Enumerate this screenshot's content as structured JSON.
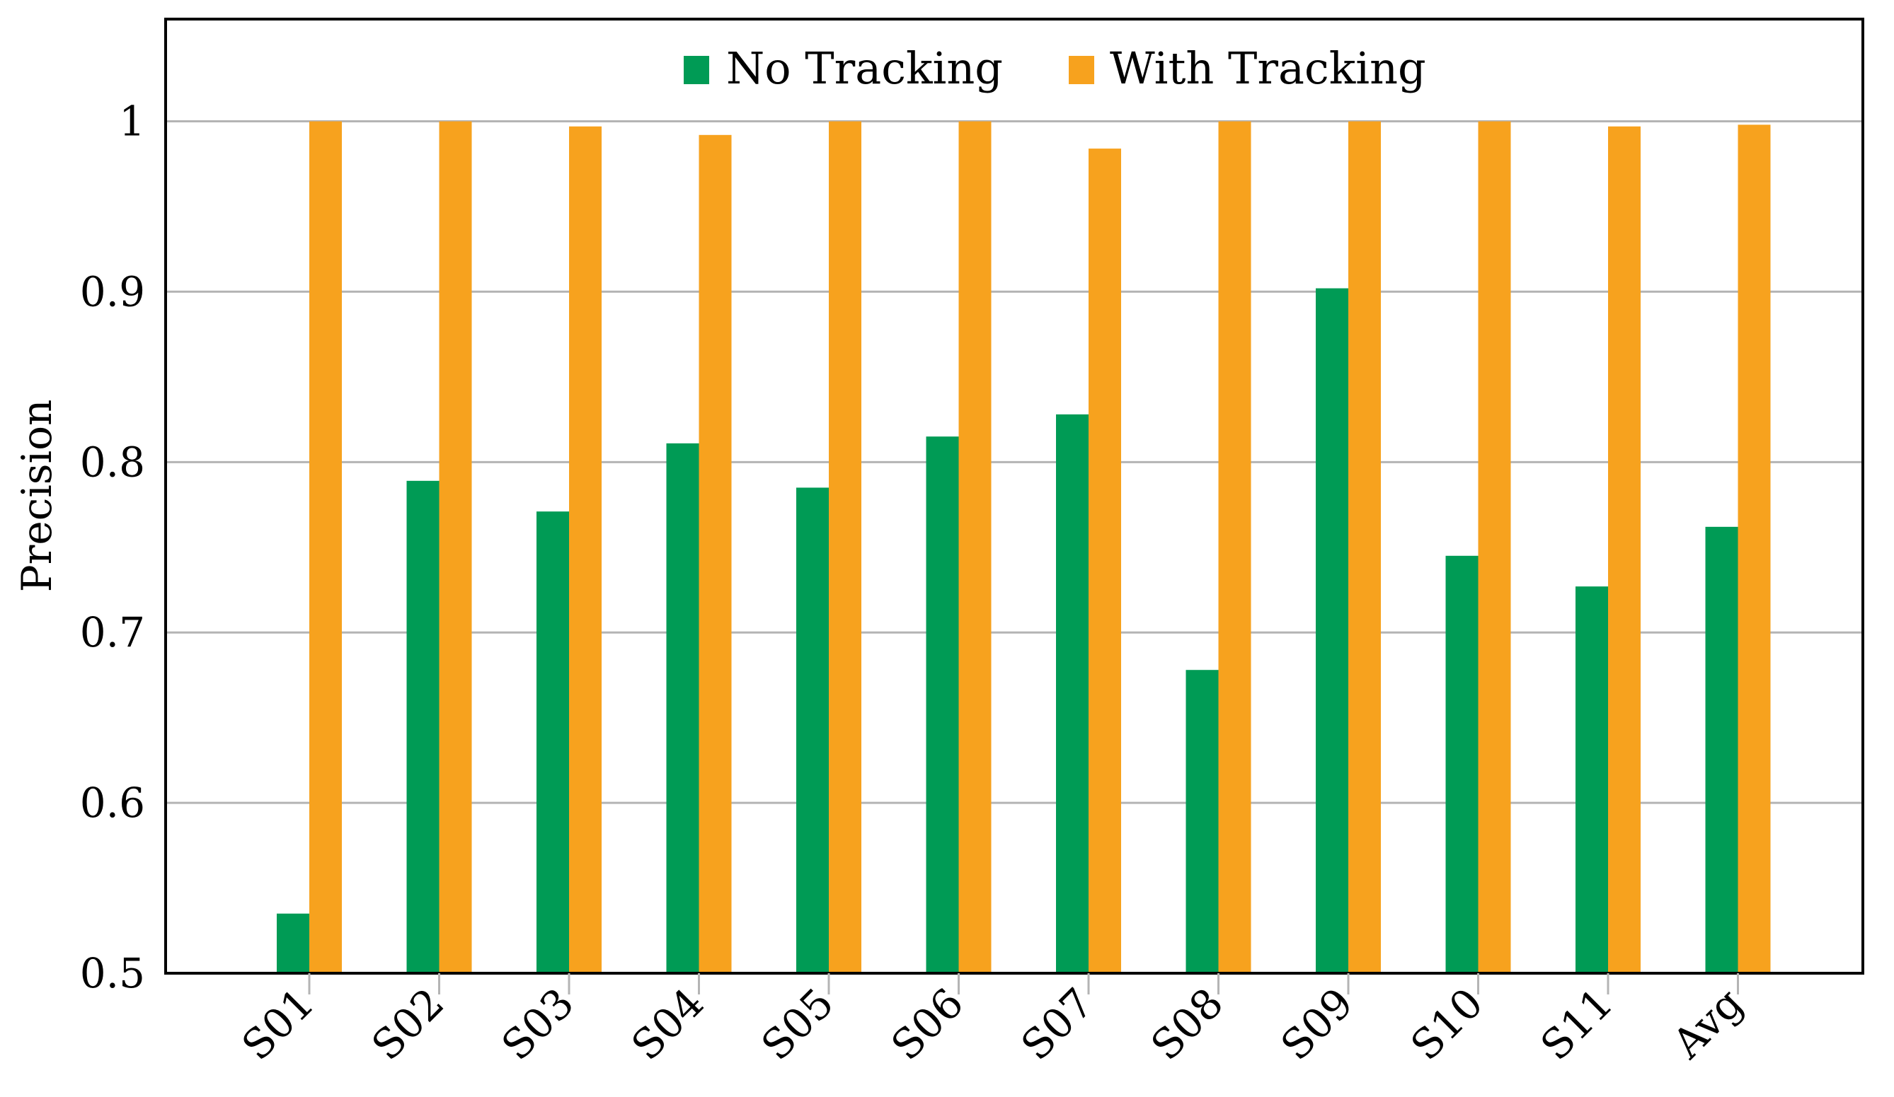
{
  "colors": {
    "no_tracking": "#009B55",
    "with_tracking": "#F7A21E",
    "grid": "#B4B4B4",
    "axis": "#000000"
  },
  "chart_data": {
    "type": "bar",
    "title": "",
    "xlabel": "",
    "ylabel": "Precision",
    "ylim": [
      0.5,
      1.06
    ],
    "yticks": [
      0.5,
      0.6,
      0.7,
      0.8,
      0.9,
      1
    ],
    "ytick_labels": [
      "0.5",
      "0.6",
      "0.7",
      "0.8",
      "0.9",
      "1"
    ],
    "grid": true,
    "legend_position": "top-center",
    "categories": [
      "S01",
      "S02",
      "S03",
      "S04",
      "S05",
      "S06",
      "S07",
      "S08",
      "S09",
      "S10",
      "S11",
      "Avg"
    ],
    "series": [
      {
        "name": "No Tracking",
        "color_key": "no_tracking",
        "values": [
          0.535,
          0.789,
          0.771,
          0.811,
          0.785,
          0.815,
          0.828,
          0.678,
          0.902,
          0.745,
          0.727,
          0.762
        ]
      },
      {
        "name": "With Tracking",
        "color_key": "with_tracking",
        "values": [
          1.0,
          1.0,
          0.997,
          0.992,
          1.0,
          1.0,
          0.984,
          1.0,
          1.0,
          1.0,
          0.997,
          0.998
        ]
      }
    ]
  }
}
